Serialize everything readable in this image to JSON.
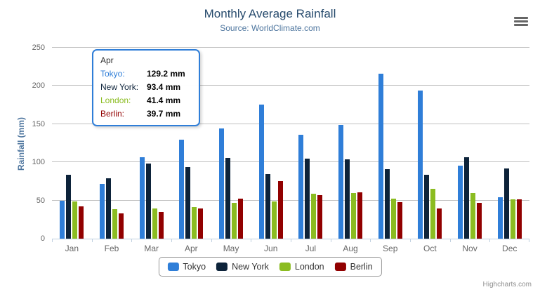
{
  "title": "Monthly Average Rainfall",
  "subtitle": "Source: WorldClimate.com",
  "credits": "Highcharts.com",
  "colors": {
    "title_color": "#274b6d",
    "subtitle_color": "#4d759e",
    "axis_label_color": "#666666",
    "grid_line_color": "#c0c0c0",
    "axis_line_color": "#c0d0e0",
    "legend_border_color": "#999999"
  },
  "export_menu": {
    "icon": "hamburger-icon"
  },
  "chart_data": {
    "type": "bar",
    "title": "Monthly Average Rainfall",
    "subtitle": "Source: WorldClimate.com",
    "xlabel": "",
    "ylabel": "Rainfall (mm)",
    "ylim": [
      0,
      250
    ],
    "yticks": [
      0,
      50,
      100,
      150,
      200,
      250
    ],
    "grid": true,
    "legend_position": "bottom",
    "categories": [
      "Jan",
      "Feb",
      "Mar",
      "Apr",
      "May",
      "Jun",
      "Jul",
      "Aug",
      "Sep",
      "Oct",
      "Nov",
      "Dec"
    ],
    "series": [
      {
        "name": "Tokyo",
        "color": "#2f7ed8",
        "values": [
          49.9,
          71.5,
          106.4,
          129.2,
          144.0,
          176.0,
          135.6,
          148.5,
          216.4,
          194.1,
          95.6,
          54.4
        ]
      },
      {
        "name": "New York",
        "color": "#0d233a",
        "values": [
          83.6,
          78.8,
          98.5,
          93.4,
          106.0,
          84.5,
          105.0,
          104.3,
          91.2,
          83.5,
          106.6,
          92.3
        ]
      },
      {
        "name": "London",
        "color": "#8bbc21",
        "values": [
          48.9,
          38.8,
          39.3,
          41.4,
          47.0,
          48.3,
          59.0,
          59.6,
          52.4,
          65.2,
          59.3,
          51.2
        ]
      },
      {
        "name": "Berlin",
        "color": "#910000",
        "values": [
          42.4,
          33.2,
          34.5,
          39.7,
          52.6,
          75.5,
          57.4,
          60.4,
          47.6,
          39.1,
          46.8,
          51.1
        ]
      }
    ]
  },
  "tooltip": {
    "visible": true,
    "header": "Apr",
    "border_color": "#2f7ed8",
    "rows": [
      {
        "series": "Tokyo",
        "label": "Tokyo:",
        "value": "129.2 mm"
      },
      {
        "series": "New York",
        "label": "New York:",
        "value": "93.4 mm"
      },
      {
        "series": "London",
        "label": "London:",
        "value": "41.4 mm"
      },
      {
        "series": "Berlin",
        "label": "Berlin:",
        "value": "39.7 mm"
      }
    ]
  }
}
